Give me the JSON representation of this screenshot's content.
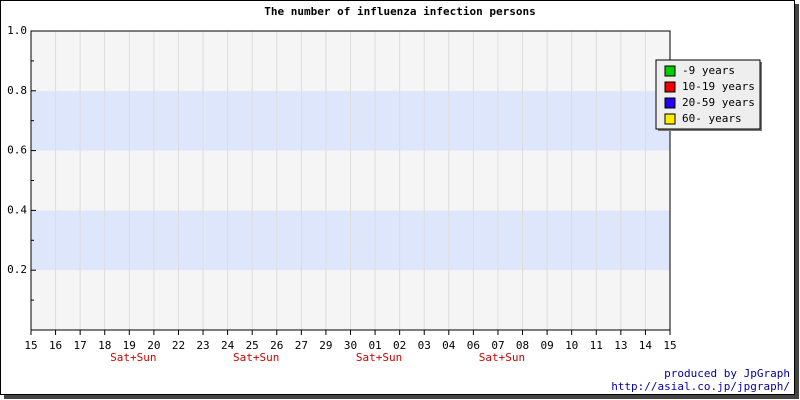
{
  "chart_data": {
    "type": "line",
    "title": "The number of influenza infection persons",
    "categories": [
      "15",
      "16",
      "17",
      "18",
      "19",
      "20",
      "22",
      "23",
      "24",
      "25",
      "26",
      "27",
      "29",
      "30",
      "01",
      "02",
      "03",
      "04",
      "06",
      "07",
      "08",
      "09",
      "10",
      "11",
      "13",
      "14",
      "15"
    ],
    "sublabels": [
      null,
      null,
      null,
      null,
      "Sat+Sun",
      null,
      null,
      null,
      null,
      "Sat+Sun",
      null,
      null,
      null,
      null,
      "Sat+Sun",
      null,
      null,
      null,
      null,
      "Sat+Sun",
      null,
      null,
      null,
      null,
      null,
      null,
      null
    ],
    "series": [
      {
        "name": "-9 years",
        "color": "#00cc00"
      },
      {
        "name": "10-19 years",
        "color": "#ee0000"
      },
      {
        "name": "20-59 years",
        "color": "#2200ee"
      },
      {
        "name": "60- years",
        "color": "#ffee00"
      }
    ],
    "ylim": [
      0,
      1
    ],
    "yticks": [
      0.2,
      0.4,
      0.6,
      0.8,
      {
        "value": 1,
        "label": "1.0"
      }
    ],
    "grid": true,
    "band_colors": [
      "#f5f5f5",
      "#dde6fb"
    ],
    "legend": "upper right",
    "credits": [
      "produced by JpGraph",
      "http://asial.co.jp/jpgraph/"
    ]
  }
}
